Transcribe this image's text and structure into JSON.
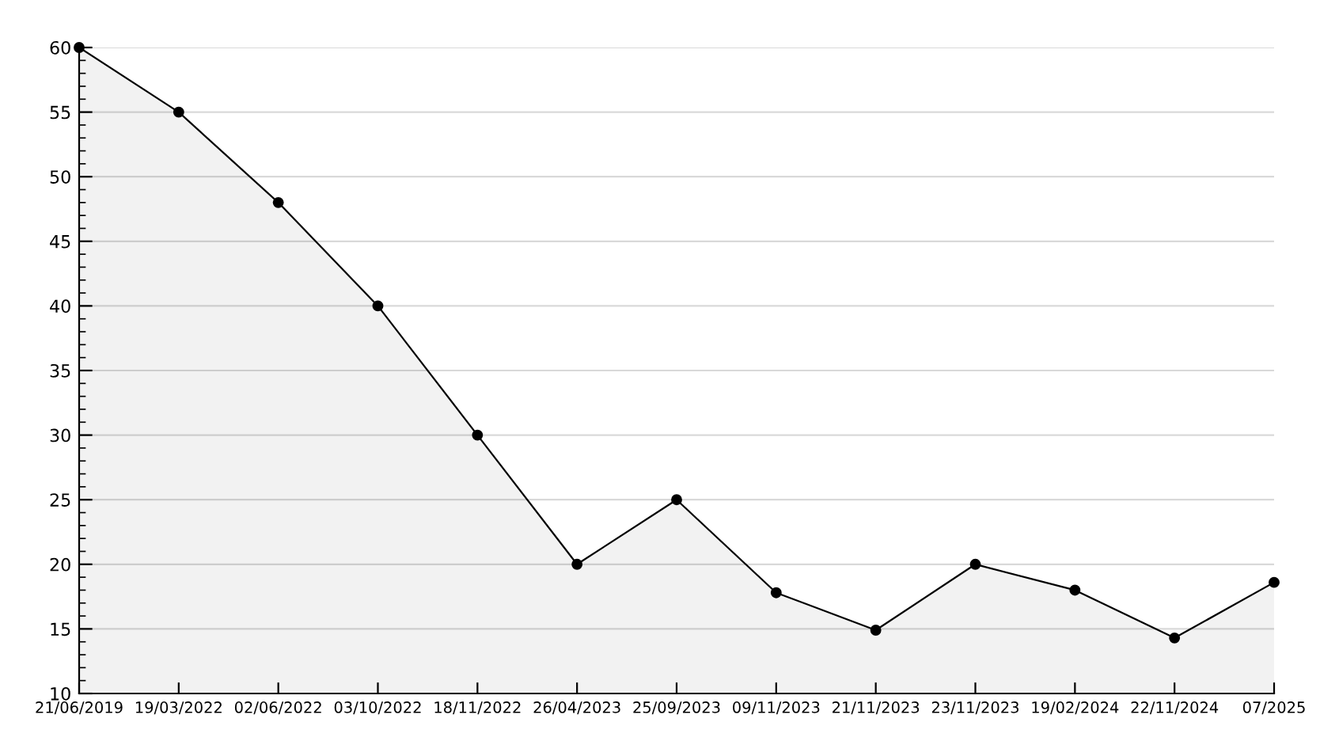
{
  "chart_data": {
    "type": "area",
    "categories": [
      "21/06/2019",
      "19/03/2022",
      "02/06/2022",
      "03/10/2022",
      "18/11/2022",
      "26/04/2023",
      "25/09/2023",
      "09/11/2023",
      "21/11/2023",
      "23/11/2023",
      "19/02/2024",
      "22/11/2024",
      "07/2025"
    ],
    "series": [
      {
        "color": "#000000",
        "values": [
          60,
          55,
          48,
          40,
          30,
          20,
          25,
          17.8,
          14.9,
          20,
          18,
          14.3,
          18.6
        ]
      }
    ],
    "ylim": [
      10,
      60
    ],
    "yticks": [
      10,
      15,
      20,
      25,
      30,
      35,
      40,
      45,
      50,
      55,
      60
    ],
    "grid": "y",
    "marker": "circle",
    "line_style": "solid"
  }
}
